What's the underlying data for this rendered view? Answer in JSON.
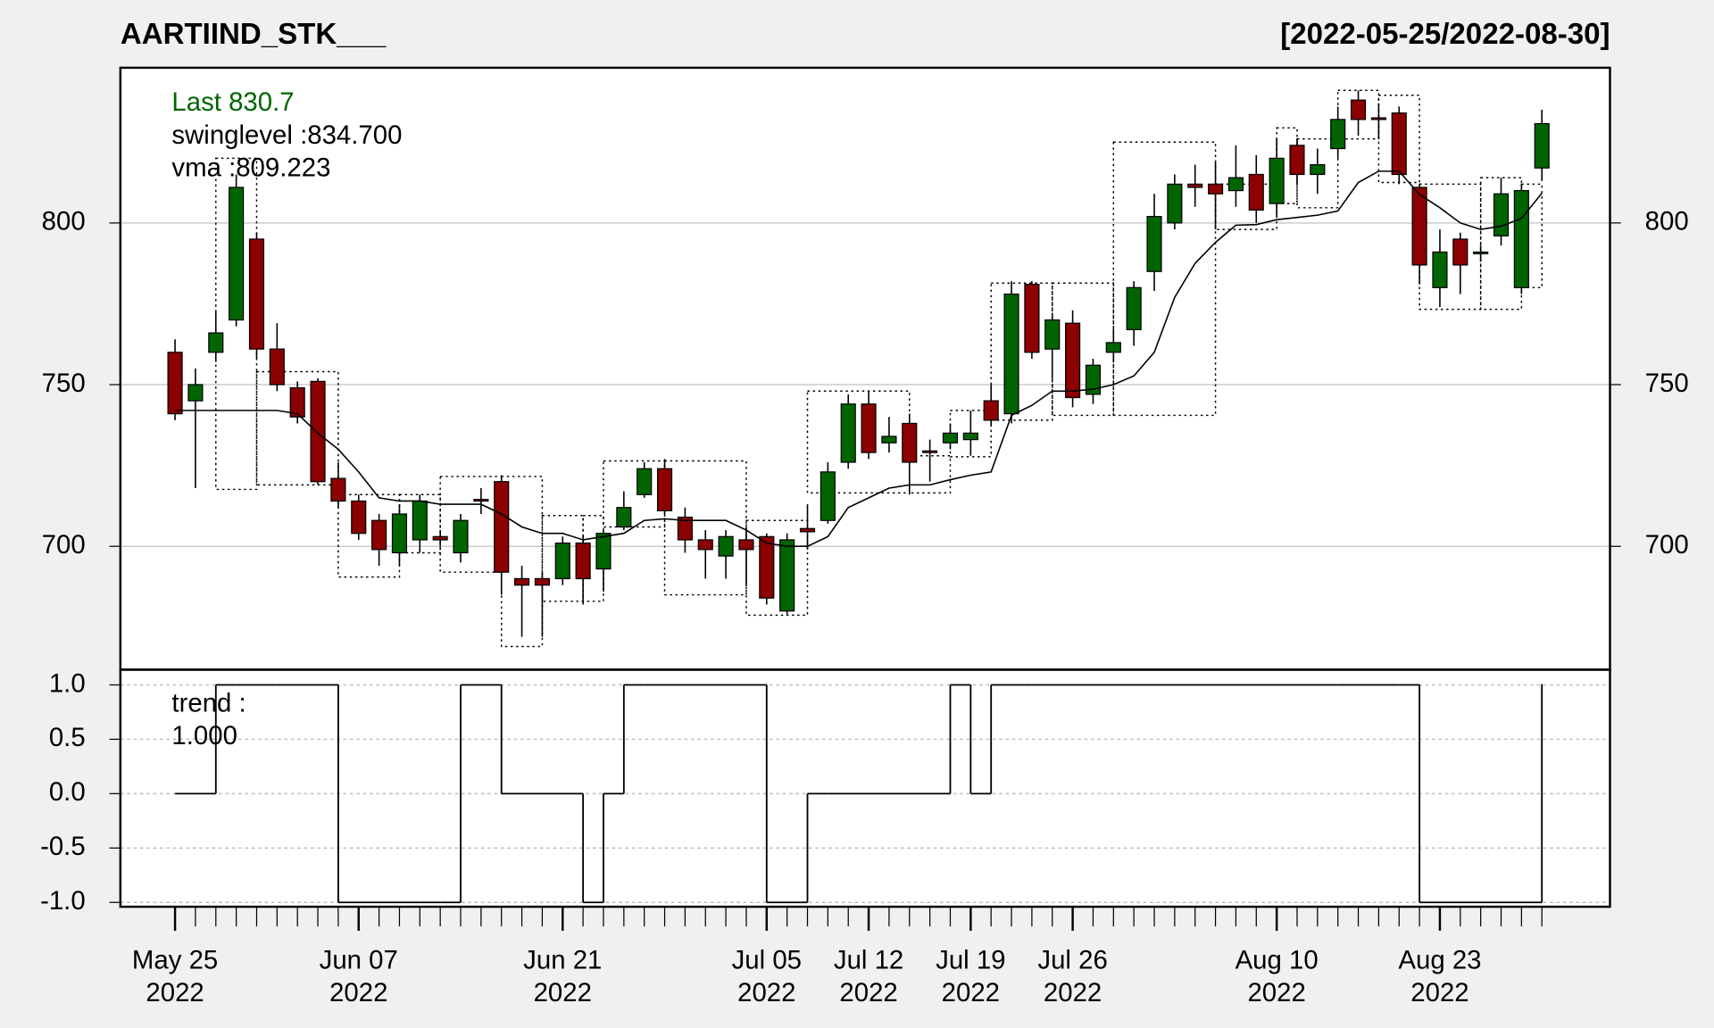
{
  "chart_data": [
    {
      "type": "candlestick",
      "title": "AARTIIND_STK___",
      "subtitle": "[2022-05-25/2022-08-30]",
      "legend": [
        "Last 830.7",
        "swinglevel :834.700",
        "vma :809.223"
      ],
      "legend_colors": [
        "#006400",
        "#000000",
        "#000000"
      ],
      "categories": [
        "May 25\n2022",
        null,
        null,
        null,
        null,
        null,
        null,
        null,
        null,
        "Jun 07\n2022",
        null,
        null,
        null,
        null,
        null,
        null,
        null,
        null,
        null,
        "Jun 21\n2022",
        null,
        null,
        null,
        null,
        null,
        null,
        null,
        null,
        null,
        "Jul 05\n2022",
        null,
        null,
        null,
        null,
        "Jul 12\n2022",
        null,
        null,
        null,
        null,
        "Jul 19\n2022",
        null,
        null,
        null,
        null,
        "Jul 26\n2022",
        null,
        null,
        null,
        null,
        null,
        null,
        null,
        null,
        null,
        "Aug 10\n2022",
        null,
        null,
        null,
        null,
        null,
        null,
        null,
        "Aug 23\n2022",
        null,
        null,
        null,
        null,
        null
      ],
      "open": [
        760,
        745,
        760,
        770,
        795,
        761,
        749,
        751,
        721,
        714,
        708,
        698,
        702,
        703,
        698,
        714.5,
        720,
        690,
        690,
        690,
        701,
        693,
        706,
        716,
        724,
        709,
        702,
        697,
        702,
        703,
        680,
        705.5,
        708,
        726,
        744,
        732,
        738,
        729.5,
        732,
        733,
        745,
        741,
        781,
        761,
        769,
        747,
        760,
        767,
        785,
        800,
        812,
        812,
        810,
        815,
        806,
        824,
        815,
        823,
        838,
        832.5,
        834,
        811,
        780,
        795,
        790.5,
        796,
        780,
        817
      ],
      "high": [
        764,
        755,
        773,
        815,
        797,
        769,
        751,
        752,
        726,
        716,
        710,
        713,
        716,
        705,
        710,
        718,
        722,
        694,
        692,
        703,
        703,
        705,
        717,
        726,
        727,
        712,
        705,
        705,
        706,
        704,
        704,
        713,
        726,
        747,
        748,
        740,
        741,
        733,
        738,
        742,
        750,
        782,
        782,
        772,
        773,
        758,
        767,
        782,
        809,
        815,
        818,
        819,
        824,
        821,
        826,
        826,
        823,
        836,
        841,
        837,
        836,
        812,
        798,
        797,
        793,
        814,
        812,
        835
      ],
      "low": [
        739,
        718,
        757,
        768,
        758,
        748,
        738,
        719,
        712,
        702,
        694,
        694,
        698,
        700,
        695,
        710,
        685,
        672,
        672,
        688,
        682,
        686,
        705,
        715,
        710,
        698,
        690,
        690,
        688,
        682,
        679,
        699,
        707,
        724,
        727,
        729,
        716,
        720,
        730,
        728,
        737,
        738,
        758,
        752,
        743,
        744,
        757,
        762,
        779,
        798,
        805,
        798,
        805,
        800,
        802,
        812,
        809,
        820,
        827,
        826,
        812,
        781,
        774,
        778,
        788,
        793,
        778,
        813
      ],
      "close": [
        741,
        750,
        766,
        811,
        761,
        750,
        740,
        720,
        714,
        704,
        699,
        710,
        714,
        702,
        708,
        714,
        692,
        688,
        688,
        701,
        690,
        704,
        712,
        724,
        711,
        702,
        699,
        703,
        699,
        684,
        702,
        704.5,
        723,
        744,
        729,
        734,
        726,
        729,
        735,
        735,
        739,
        778,
        760,
        770,
        746,
        756,
        763,
        780,
        802,
        812,
        811,
        809,
        814,
        804,
        820,
        815,
        818,
        832,
        832,
        832,
        815,
        787,
        791,
        787,
        791,
        809,
        810,
        830.7
      ],
      "up_color": "#006400",
      "down_color": "#8b0000",
      "series": [
        {
          "name": "vma",
          "color": "#000000",
          "values": [
            742,
            742,
            742,
            742,
            742,
            742,
            741,
            735,
            730,
            723,
            715,
            714,
            714,
            713,
            713,
            713,
            710,
            706,
            704,
            704,
            702,
            703,
            704,
            708,
            708.5,
            708,
            708,
            708,
            705,
            701,
            700,
            700,
            703,
            712,
            715,
            718,
            719,
            719,
            720.6,
            722,
            723,
            740.5,
            743.6,
            748,
            748,
            748.6,
            750,
            752.7,
            760,
            777,
            787.5,
            794,
            799.3,
            799.5,
            801,
            801.7,
            802.4,
            803.7,
            812.5,
            816,
            816,
            808.8,
            804.7,
            800,
            798,
            799,
            801.4,
            809.2
          ]
        }
      ],
      "swing": [
        {
          "start": 2,
          "end": 4,
          "high": 820,
          "low": 717.6
        },
        {
          "start": 4,
          "end": 8,
          "high": 754,
          "low": 719
        },
        {
          "start": 8,
          "end": 11,
          "high": 716,
          "low": 690.5
        },
        {
          "start": 11,
          "end": 13,
          "high": 716,
          "low": 698
        },
        {
          "start": 13,
          "end": 16,
          "high": 721.6,
          "low": 692
        },
        {
          "start": 16,
          "end": 18,
          "high": 721.6,
          "low": 669
        },
        {
          "start": 18,
          "end": 20,
          "high": 709.5,
          "low": 683
        },
        {
          "start": 20,
          "end": 21,
          "high": 709.5,
          "low": 683
        },
        {
          "start": 21,
          "end": 24,
          "high": 726.4,
          "low": 706
        },
        {
          "start": 24,
          "end": 28,
          "high": 726.4,
          "low": 685
        },
        {
          "start": 28,
          "end": 31,
          "high": 708,
          "low": 678.7
        },
        {
          "start": 31,
          "end": 36,
          "high": 748,
          "low": 716.5
        },
        {
          "start": 36,
          "end": 38,
          "high": 728,
          "low": 716.5
        },
        {
          "start": 38,
          "end": 40,
          "high": 742,
          "low": 727.7
        },
        {
          "start": 40,
          "end": 43,
          "high": 781.4,
          "low": 739
        },
        {
          "start": 43,
          "end": 46,
          "high": 781.4,
          "low": 740.5
        },
        {
          "start": 46,
          "end": 51,
          "high": 825,
          "low": 740.5
        },
        {
          "start": 51,
          "end": 54,
          "high": 812,
          "low": 798
        },
        {
          "start": 54,
          "end": 55,
          "high": 829.4,
          "low": 806
        },
        {
          "start": 55,
          "end": 57,
          "high": 826,
          "low": 804.7
        },
        {
          "start": 57,
          "end": 59,
          "high": 841,
          "low": 826
        },
        {
          "start": 59,
          "end": 61,
          "high": 839.5,
          "low": 812.5
        },
        {
          "start": 61,
          "end": 64,
          "high": 812,
          "low": 773.3
        },
        {
          "start": 64,
          "end": 66,
          "high": 814,
          "low": 773.3
        },
        {
          "start": 66,
          "end": 67,
          "high": 812,
          "low": 780
        }
      ],
      "ylim": [
        661.85,
        848.0
      ],
      "yticks": [
        700,
        750,
        800
      ],
      "grid": true
    },
    {
      "type": "step",
      "legend": [
        "trend :",
        "1.000"
      ],
      "values": [
        0,
        0,
        1,
        1,
        1,
        1,
        1,
        1,
        -1,
        -1,
        -1,
        -1,
        -1,
        -1,
        1,
        1,
        0,
        0,
        0,
        0,
        -1,
        0,
        1,
        1,
        1,
        1,
        1,
        1,
        1,
        -1,
        -1,
        0,
        0,
        0,
        0,
        0,
        0,
        0,
        1,
        0,
        1,
        1,
        1,
        1,
        1,
        1,
        1,
        1,
        1,
        1,
        1,
        1,
        1,
        1,
        1,
        1,
        1,
        1,
        1,
        1,
        1,
        -1,
        -1,
        -1,
        -1,
        -1,
        -1,
        1
      ],
      "color": "#000000",
      "ylim": [
        -1.04,
        1.14
      ],
      "yticks": [
        {
          "value": 1,
          "label": "1.0"
        },
        {
          "value": 0.5,
          "label": "0.5"
        },
        {
          "value": 0,
          "label": "0.0"
        },
        {
          "value": -0.5,
          "label": "-0.5"
        },
        {
          "value": -1,
          "label": "-1.0"
        }
      ],
      "grid": true
    }
  ]
}
